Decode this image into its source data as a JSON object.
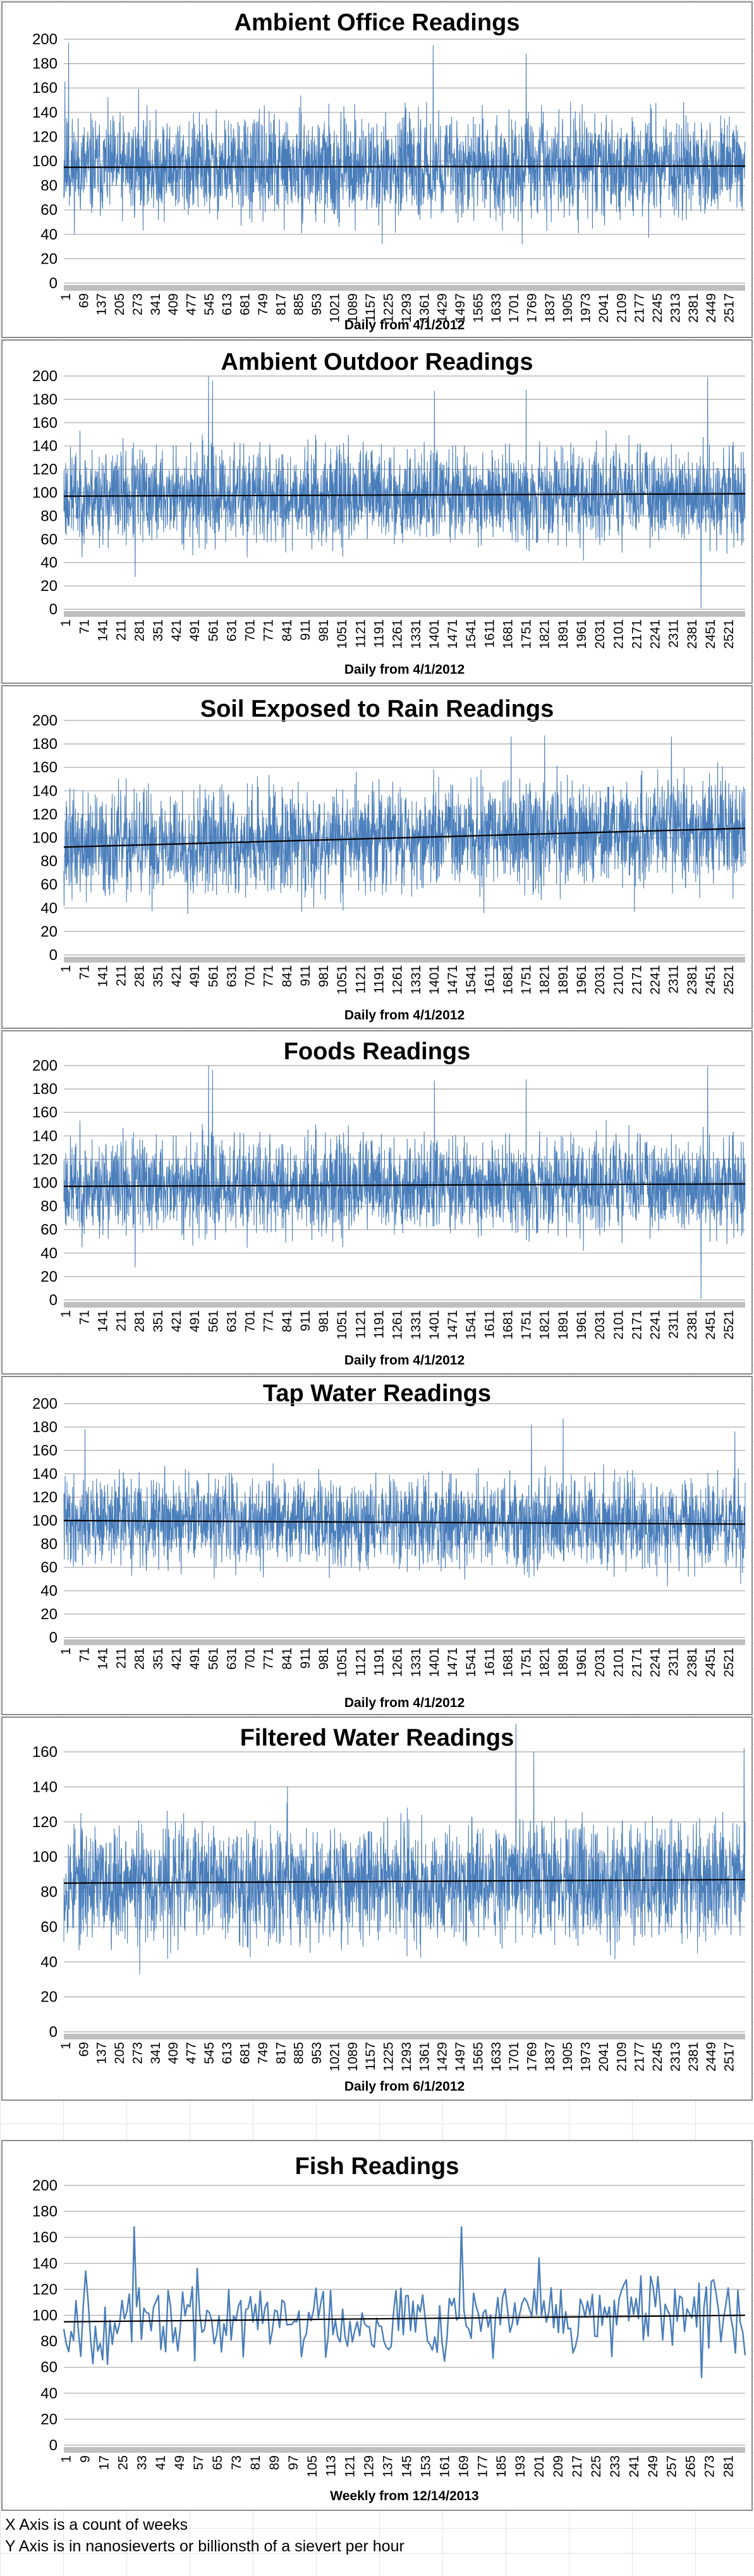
{
  "chart_data": [
    {
      "type": "line",
      "title": "Ambient Office Readings",
      "xlabel": "Daily from 4/1/2012",
      "ylabel": "",
      "ylim": [
        0,
        200
      ],
      "yticks": [
        0,
        20,
        40,
        60,
        80,
        100,
        120,
        140,
        160,
        180,
        200
      ],
      "xticks": [
        "1",
        "69",
        "137",
        "205",
        "273",
        "341",
        "409",
        "477",
        "545",
        "613",
        "681",
        "749",
        "817",
        "885",
        "953",
        "1021",
        "1089",
        "1157",
        "1225",
        "1293",
        "1361",
        "1429",
        "1497",
        "1565",
        "1633",
        "1701",
        "1769",
        "1837",
        "1905",
        "1973",
        "2041",
        "2109",
        "2177",
        "2245",
        "2313",
        "2381",
        "2449",
        "2517"
      ],
      "x_count": 2580,
      "series": [
        {
          "baseline": 97,
          "spread": 20,
          "seed": 11,
          "spikes": [
            [
              4,
              165
            ],
            [
              18,
              197
            ],
            [
              1398,
              195
            ],
            [
              1750,
              188
            ],
            [
              1735,
              32
            ],
            [
              1205,
              32
            ],
            [
              283,
              159
            ]
          ]
        }
      ],
      "trendline": [
        95,
        96
      ]
    },
    {
      "type": "line",
      "title": "Ambient Outdoor Readings",
      "xlabel": "Daily from 4/1/2012",
      "ylabel": "",
      "ylim": [
        0,
        200
      ],
      "yticks": [
        0,
        20,
        40,
        60,
        80,
        100,
        120,
        140,
        160,
        180,
        200
      ],
      "xticks": [
        "1",
        "71",
        "141",
        "211",
        "281",
        "351",
        "421",
        "491",
        "561",
        "631",
        "701",
        "771",
        "841",
        "911",
        "981",
        "1051",
        "1121",
        "1191",
        "1261",
        "1331",
        "1401",
        "1471",
        "1541",
        "1611",
        "1681",
        "1751",
        "1821",
        "1891",
        "1961",
        "2031",
        "2101",
        "2171",
        "2241",
        "2311",
        "2381",
        "2451",
        "2521"
      ],
      "x_count": 2580,
      "series": [
        {
          "baseline": 98,
          "spread": 20,
          "seed": 23,
          "spikes": [
            [
              548,
              200
            ],
            [
              563,
              196
            ],
            [
              2437,
              199
            ],
            [
              2412,
              1
            ],
            [
              270,
              28
            ],
            [
              1403,
              187
            ],
            [
              1750,
              188
            ]
          ]
        }
      ],
      "trendline": [
        97,
        99
      ]
    },
    {
      "type": "line",
      "title": "Soil Exposed to Rain Readings",
      "xlabel": "Daily from 4/1/2012",
      "ylabel": "",
      "ylim": [
        0,
        200
      ],
      "yticks": [
        0,
        20,
        40,
        60,
        80,
        100,
        120,
        140,
        160,
        180,
        200
      ],
      "xticks": [
        "1",
        "71",
        "141",
        "211",
        "281",
        "351",
        "421",
        "491",
        "561",
        "631",
        "701",
        "771",
        "841",
        "911",
        "981",
        "1051",
        "1121",
        "1191",
        "1261",
        "1331",
        "1401",
        "1471",
        "1541",
        "1611",
        "1681",
        "1751",
        "1821",
        "1891",
        "1961",
        "2031",
        "2101",
        "2171",
        "2241",
        "2311",
        "2381",
        "2451",
        "2521"
      ],
      "x_count": 2580,
      "series": [
        {
          "baseline": 100,
          "spread": 22,
          "seed": 37,
          "spikes": [
            [
              1693,
              186
            ],
            [
              1820,
              187
            ],
            [
              2300,
              186
            ],
            [
              1590,
              36
            ],
            [
              2160,
              37
            ],
            [
              900,
              37
            ]
          ]
        }
      ],
      "trendline": [
        92,
        108
      ]
    },
    {
      "type": "line",
      "title": "Foods Readings",
      "xlabel": "Daily from 4/1/2012",
      "ylabel": "",
      "ylim": [
        0,
        200
      ],
      "yticks": [
        0,
        20,
        40,
        60,
        80,
        100,
        120,
        140,
        160,
        180,
        200
      ],
      "xticks": [
        "1",
        "71",
        "141",
        "211",
        "281",
        "351",
        "421",
        "491",
        "561",
        "631",
        "701",
        "771",
        "841",
        "911",
        "981",
        "1051",
        "1121",
        "1191",
        "1261",
        "1331",
        "1401",
        "1471",
        "1541",
        "1611",
        "1681",
        "1751",
        "1821",
        "1891",
        "1961",
        "2031",
        "2101",
        "2171",
        "2241",
        "2311",
        "2381",
        "2451",
        "2521"
      ],
      "x_count": 2580,
      "series": [
        {
          "baseline": 98,
          "spread": 20,
          "seed": 23,
          "spikes": [
            [
              548,
              200
            ],
            [
              563,
              196
            ],
            [
              2437,
              199
            ],
            [
              2412,
              1
            ],
            [
              270,
              28
            ],
            [
              1403,
              187
            ],
            [
              1750,
              188
            ]
          ]
        }
      ],
      "trendline": [
        97,
        99
      ]
    },
    {
      "type": "line",
      "title": "Tap Water Readings",
      "xlabel": "Daily from 4/1/2012",
      "ylabel": "",
      "ylim": [
        0,
        200
      ],
      "yticks": [
        0,
        20,
        40,
        60,
        80,
        100,
        120,
        140,
        160,
        180,
        200
      ],
      "xticks": [
        "1",
        "71",
        "141",
        "211",
        "281",
        "351",
        "421",
        "491",
        "561",
        "631",
        "701",
        "771",
        "841",
        "911",
        "981",
        "1051",
        "1121",
        "1191",
        "1261",
        "1331",
        "1401",
        "1471",
        "1541",
        "1611",
        "1681",
        "1751",
        "1821",
        "1891",
        "1961",
        "2031",
        "2101",
        "2171",
        "2241",
        "2311",
        "2381",
        "2451",
        "2521"
      ],
      "x_count": 2580,
      "series": [
        {
          "baseline": 100,
          "spread": 18,
          "seed": 41,
          "spikes": [
            [
              1890,
              187
            ],
            [
              1770,
              182
            ],
            [
              2540,
              176
            ],
            [
              80,
              178
            ],
            [
              2285,
              44
            ],
            [
              2562,
              46
            ],
            [
              1005,
              51
            ]
          ]
        }
      ],
      "trendline": [
        100,
        97
      ]
    },
    {
      "type": "line",
      "title": "Filtered Water Readings",
      "xlabel": "Daily from 6/1/2012",
      "ylabel": "",
      "ylim": [
        0,
        160
      ],
      "yticks": [
        0,
        20,
        40,
        60,
        80,
        100,
        120,
        140,
        160
      ],
      "xticks": [
        "1",
        "69",
        "137",
        "205",
        "273",
        "341",
        "409",
        "477",
        "545",
        "613",
        "681",
        "749",
        "817",
        "885",
        "953",
        "1021",
        "1089",
        "1157",
        "1225",
        "1293",
        "1361",
        "1429",
        "1497",
        "1565",
        "1633",
        "1701",
        "1769",
        "1837",
        "1905",
        "1973",
        "2041",
        "2109",
        "2177",
        "2245",
        "2313",
        "2381",
        "2449",
        "2517"
      ],
      "x_count": 2560,
      "series": [
        {
          "baseline": 85,
          "spread": 16,
          "seed": 53,
          "spikes": [
            [
              1698,
              176
            ],
            [
              1765,
              160
            ],
            [
              2555,
              162
            ],
            [
              285,
              33
            ],
            [
              3,
              78
            ],
            [
              840,
              140
            ]
          ]
        }
      ],
      "trendline": [
        85,
        87
      ]
    },
    {
      "type": "line",
      "title": "Fish Readings",
      "xlabel": "Weekly from 12/14/2013",
      "ylabel": "",
      "ylim": [
        0,
        200
      ],
      "yticks": [
        0,
        20,
        40,
        60,
        80,
        100,
        120,
        140,
        160,
        180,
        200
      ],
      "xticks": [
        "1",
        "9",
        "17",
        "25",
        "33",
        "41",
        "49",
        "57",
        "65",
        "73",
        "81",
        "89",
        "97",
        "105",
        "113",
        "121",
        "129",
        "137",
        "145",
        "153",
        "161",
        "169",
        "177",
        "185",
        "193",
        "201",
        "209",
        "217",
        "225",
        "233",
        "241",
        "249",
        "257",
        "265",
        "273",
        "281"
      ],
      "x_count": 282,
      "series": [
        {
          "baseline": 97,
          "spread": 15,
          "seed": 67,
          "spikes": [
            [
              29,
              168
            ],
            [
              164,
              168
            ],
            [
              9,
              134
            ],
            [
              196,
              144
            ],
            [
              263,
              52
            ],
            [
              1,
              78
            ],
            [
              2,
              72
            ]
          ]
        }
      ],
      "trendline": [
        95,
        100
      ]
    }
  ],
  "notes": {
    "x_axis": "X Axis is a count of weeks",
    "y_axis": "Y Axis is in nanosieverts or billionsth of a sievert per hour"
  },
  "colors": {
    "series": "#4a7ebb",
    "trend": "#000000",
    "gridline": "#a6a6a6",
    "axis_band": "#bfbfbf"
  }
}
